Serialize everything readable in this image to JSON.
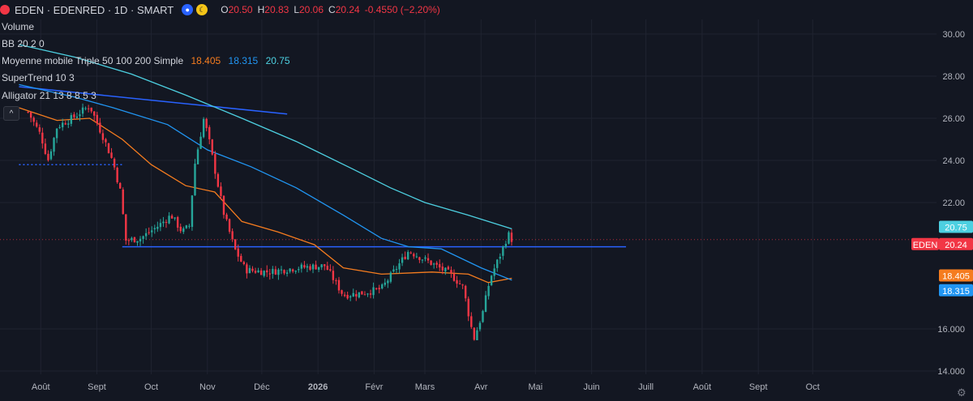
{
  "header": {
    "symbol": "EDEN · EDENRED · 1D · SMART",
    "open_label": "O",
    "open": "20.50",
    "high_label": "H",
    "high": "20.83",
    "low_label": "L",
    "low": "20.06",
    "close_label": "C",
    "close": "20.24",
    "change": "-0.4550 (−2,20%)"
  },
  "indicators": {
    "volume": "Volume",
    "bb": "BB 20 2 0",
    "ma_name": "Moyenne mobile Triple 50 100 200 Simple",
    "ma50": "18.405",
    "ma100": "18.315",
    "ma200": "20.75",
    "supertrend": "SuperTrend 10 3",
    "alligator": "Alligator 21 13 8 8 5 3"
  },
  "colors": {
    "background": "#131722",
    "up": "#26a69a",
    "down": "#f23645",
    "ma50": "#f57c1f",
    "ma100": "#2196f3",
    "ma200": "#4dd0e1",
    "trendline": "#2962ff"
  },
  "chart_data": {
    "type": "line",
    "y_ticks": [
      "30.00",
      "28.00",
      "26.00",
      "24.00",
      "22.00",
      "16.000",
      "14.000"
    ],
    "ylim": [
      14,
      30.6
    ],
    "x_ticks": [
      "Août",
      "Sept",
      "Oct",
      "Nov",
      "Déc",
      "2026",
      "Févr",
      "Mars",
      "Avr",
      "Mai",
      "Juin",
      "Juill",
      "Août",
      "Sept",
      "Oct"
    ],
    "price_labels": [
      {
        "text": "20.75",
        "value": 20.75,
        "color": "#4dd0e1"
      },
      {
        "text": "EDEN",
        "value": 20.24,
        "color": "#f23645"
      },
      {
        "text": "20.24",
        "value": 20.24,
        "color": "#f23645"
      },
      {
        "text": "18.405",
        "value": 18.405,
        "color": "#f57c1f"
      },
      {
        "text": "18.315",
        "value": 18.315,
        "color": "#2196f3"
      }
    ],
    "price_path": [
      [
        "2025-07-25",
        26.3
      ],
      [
        "2025-08-01",
        25.2
      ],
      [
        "2025-08-05",
        24.0
      ],
      [
        "2025-08-10",
        25.6
      ],
      [
        "2025-08-20",
        26.1
      ],
      [
        "2025-08-28",
        26.6
      ],
      [
        "2025-09-05",
        25.0
      ],
      [
        "2025-09-10",
        23.9
      ],
      [
        "2025-09-14",
        22.5
      ],
      [
        "2025-09-17",
        20.2
      ],
      [
        "2025-09-25",
        20.3
      ],
      [
        "2025-10-05",
        20.9
      ],
      [
        "2025-10-12",
        21.4
      ],
      [
        "2025-10-18",
        20.6
      ],
      [
        "2025-10-22",
        20.9
      ],
      [
        "2025-10-25",
        23.8
      ],
      [
        "2025-10-30",
        26.0
      ],
      [
        "2025-11-02",
        24.9
      ],
      [
        "2025-11-05",
        23.6
      ],
      [
        "2025-11-10",
        21.5
      ],
      [
        "2025-11-16",
        19.8
      ],
      [
        "2025-11-22",
        18.8
      ],
      [
        "2025-12-05",
        18.7
      ],
      [
        "2025-12-20",
        18.9
      ],
      [
        "2026-01-05",
        19.0
      ],
      [
        "2026-01-15",
        17.6
      ],
      [
        "2026-01-25",
        17.7
      ],
      [
        "2026-02-05",
        17.9
      ],
      [
        "2026-02-20",
        19.7
      ],
      [
        "2026-03-05",
        19.1
      ],
      [
        "2026-03-15",
        18.6
      ],
      [
        "2026-03-22",
        18.0
      ],
      [
        "2026-03-28",
        15.5
      ],
      [
        "2026-04-02",
        16.8
      ],
      [
        "2026-04-06",
        18.4
      ],
      [
        "2026-04-12",
        19.6
      ],
      [
        "2026-04-16",
        20.5
      ],
      [
        "2026-04-18",
        20.24
      ]
    ],
    "series": [
      {
        "values": [
          [
            "2025-07-20",
            26.5
          ],
          [
            "2025-08-10",
            25.9
          ],
          [
            "2025-08-28",
            26.0
          ],
          [
            "2025-09-15",
            25.0
          ],
          [
            "2025-10-01",
            23.8
          ],
          [
            "2025-10-20",
            22.8
          ],
          [
            "2025-11-05",
            22.5
          ],
          [
            "2025-11-20",
            21.1
          ],
          [
            "2025-12-10",
            20.6
          ],
          [
            "2025-12-30",
            20.0
          ],
          [
            "2026-01-15",
            18.9
          ],
          [
            "2026-02-05",
            18.6
          ],
          [
            "2026-03-05",
            18.7
          ],
          [
            "2026-03-25",
            18.6
          ],
          [
            "2026-04-05",
            18.2
          ],
          [
            "2026-04-18",
            18.405
          ]
        ],
        "color": "#f57c1f"
      },
      {
        "values": [
          [
            "2025-07-20",
            27.6
          ],
          [
            "2025-08-20",
            27.0
          ],
          [
            "2025-09-10",
            26.5
          ],
          [
            "2025-10-10",
            25.7
          ],
          [
            "2025-11-01",
            24.5
          ],
          [
            "2025-11-25",
            23.7
          ],
          [
            "2025-12-20",
            22.7
          ],
          [
            "2026-01-15",
            21.4
          ],
          [
            "2026-02-05",
            20.3
          ],
          [
            "2026-02-20",
            19.9
          ],
          [
            "2026-03-10",
            19.8
          ],
          [
            "2026-04-01",
            18.9
          ],
          [
            "2026-04-18",
            18.315
          ]
        ],
        "color": "#2196f3"
      },
      {
        "values": [
          [
            "2025-07-20",
            29.5
          ],
          [
            "2025-08-20",
            28.9
          ],
          [
            "2025-09-20",
            28.1
          ],
          [
            "2025-10-20",
            27.1
          ],
          [
            "2025-11-20",
            26.0
          ],
          [
            "2025-12-20",
            24.9
          ],
          [
            "2026-01-20",
            23.6
          ],
          [
            "2026-02-10",
            22.7
          ],
          [
            "2026-03-01",
            22.0
          ],
          [
            "2026-03-25",
            21.4
          ],
          [
            "2026-04-18",
            20.75
          ]
        ],
        "color": "#4dd0e1"
      }
    ],
    "trendlines": [
      {
        "from": [
          "2025-07-20",
          27.5
        ],
        "to": [
          "2025-12-15",
          26.2
        ],
        "color": "#2962ff",
        "style": "solid"
      },
      {
        "from": [
          "2025-09-15",
          19.9
        ],
        "to": [
          "2026-06-20",
          19.9
        ],
        "color": "#2962ff",
        "style": "solid"
      },
      {
        "from": [
          "2025-07-20",
          23.8
        ],
        "to": [
          "2025-09-15",
          23.8
        ],
        "color": "#2962ff",
        "style": "dotted"
      }
    ]
  }
}
